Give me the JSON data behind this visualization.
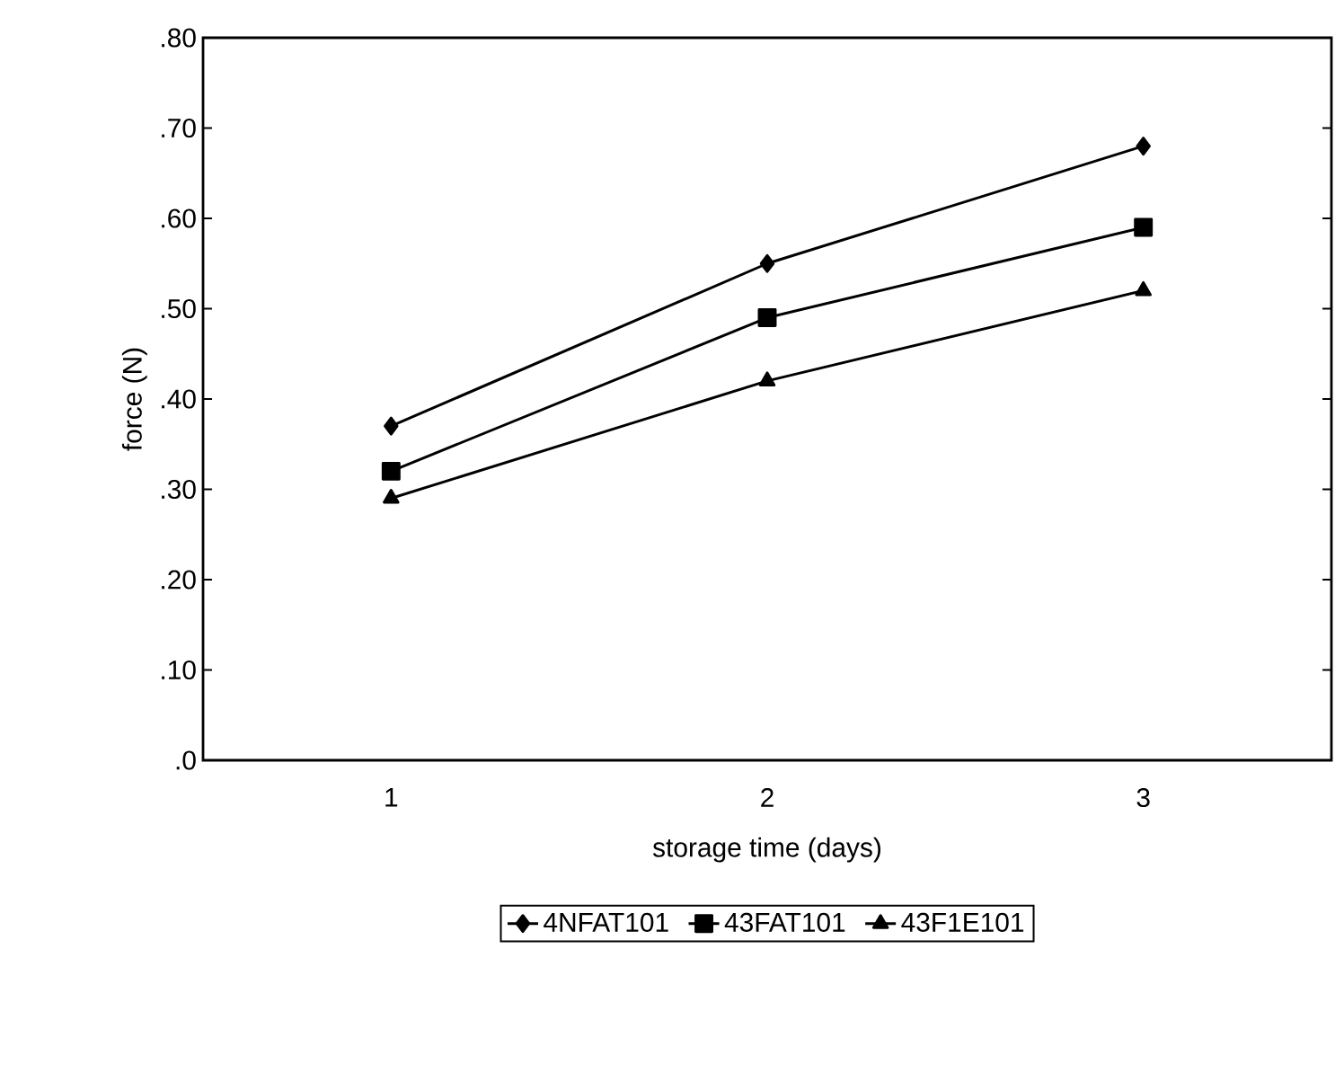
{
  "chart_data": {
    "type": "line",
    "xlabel": "storage time (days)",
    "ylabel": "force (N)",
    "categories": [
      "1",
      "2",
      "3"
    ],
    "ylim": [
      0,
      0.8
    ],
    "yticks": [
      {
        "value": 0,
        "label": ".0"
      },
      {
        "value": 0.1,
        "label": ".10"
      },
      {
        "value": 0.2,
        "label": ".20"
      },
      {
        "value": 0.3,
        "label": ".30"
      },
      {
        "value": 0.4,
        "label": ".40"
      },
      {
        "value": 0.5,
        "label": ".50"
      },
      {
        "value": 0.6,
        "label": ".60"
      },
      {
        "value": 0.7,
        "label": ".70"
      },
      {
        "value": 0.8,
        "label": ".80"
      }
    ],
    "series": [
      {
        "name": "4NFAT101",
        "color": "#000000",
        "marker": "diamond",
        "values": [
          0.37,
          0.55,
          0.68
        ]
      },
      {
        "name": "43FAT101",
        "color": "#000000",
        "marker": "square",
        "values": [
          0.32,
          0.49,
          0.59
        ]
      },
      {
        "name": "43F1E101",
        "color": "#000000",
        "marker": "triangle",
        "values": [
          0.29,
          0.42,
          0.52
        ]
      }
    ],
    "grid": false,
    "legend": "bottom",
    "line_style": "solid"
  }
}
